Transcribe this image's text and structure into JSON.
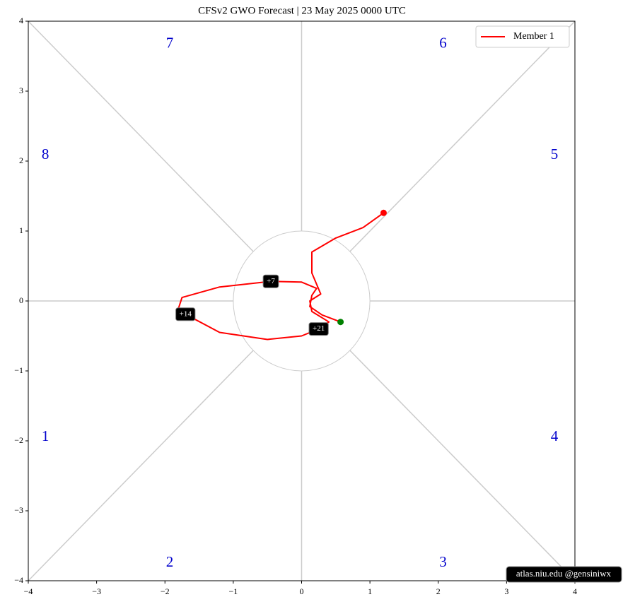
{
  "chart_data": {
    "type": "line",
    "title": "CFSv2 GWO Forecast   |   23  May  2025 0000 UTC",
    "xlim": [
      -4,
      4
    ],
    "ylim": [
      -4,
      4
    ],
    "xticks": [
      {
        "value": -4,
        "label": "−4"
      },
      {
        "value": -3,
        "label": "−3"
      },
      {
        "value": -2,
        "label": "−2"
      },
      {
        "value": -1,
        "label": "−1"
      },
      0,
      1,
      2,
      3,
      4
    ],
    "yticks": [
      {
        "value": -4,
        "label": "−4"
      },
      {
        "value": -3,
        "label": "−3"
      },
      {
        "value": -2,
        "label": "−2"
      },
      {
        "value": -1,
        "label": "−1"
      },
      0,
      1,
      2,
      3,
      4
    ],
    "legend": "upper right",
    "series": [
      {
        "name": "Member 1",
        "color": "#ff0000",
        "x": [
          0.57,
          0.3,
          0.12,
          0.15,
          0.22,
          0.0,
          -0.45,
          -1.2,
          -1.75,
          -1.8,
          -1.7,
          -1.2,
          -0.5,
          0.0,
          0.25,
          0.4,
          0.15,
          0.12,
          0.28,
          0.15,
          0.15,
          0.5,
          0.9,
          1.2
        ],
        "values": [
          -0.3,
          -0.2,
          -0.08,
          0.08,
          0.18,
          0.27,
          0.28,
          0.2,
          0.05,
          -0.1,
          -0.19,
          -0.45,
          -0.55,
          -0.5,
          -0.4,
          -0.3,
          -0.15,
          0.0,
          0.1,
          0.4,
          0.7,
          0.9,
          1.05,
          1.26
        ]
      }
    ],
    "start_color": "#008000",
    "end_color": "#ff0000",
    "annotations": [
      {
        "text": "+7",
        "x": -0.45,
        "y": 0.28
      },
      {
        "text": "+14",
        "x": -1.7,
        "y": -0.19
      },
      {
        "text": "+21",
        "x": 0.25,
        "y": -0.4
      }
    ],
    "phase_labels": [
      {
        "text": "1",
        "x": -3.75,
        "y": -1.95
      },
      {
        "text": "2",
        "x": -1.93,
        "y": -3.75
      },
      {
        "text": "3",
        "x": 2.07,
        "y": -3.75
      },
      {
        "text": "4",
        "x": 3.7,
        "y": -1.95
      },
      {
        "text": "5",
        "x": 3.7,
        "y": 2.08
      },
      {
        "text": "6",
        "x": 2.07,
        "y": 3.67
      },
      {
        "text": "7",
        "x": -1.93,
        "y": 3.67
      },
      {
        "text": "8",
        "x": -3.75,
        "y": 2.08
      }
    ],
    "watermark": "atlas.niu.edu  @gensiniwx"
  }
}
